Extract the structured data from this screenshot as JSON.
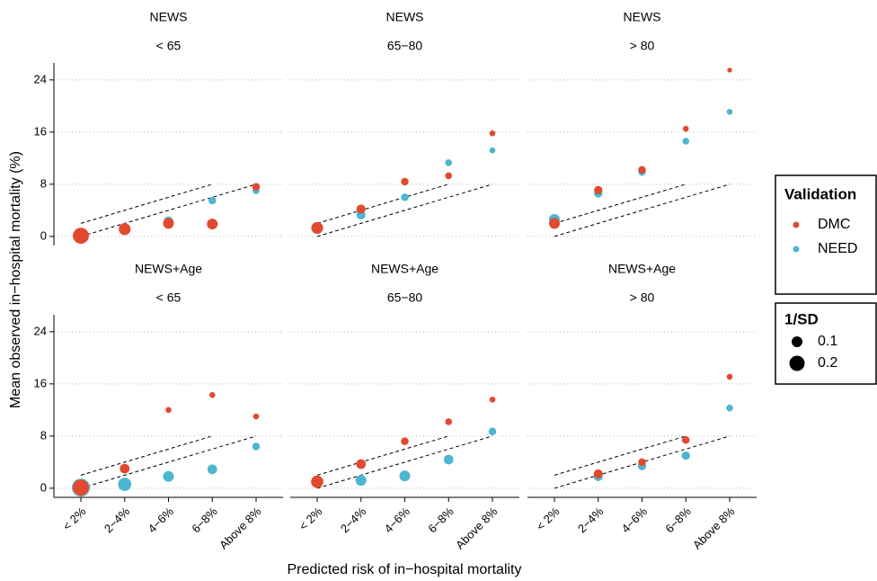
{
  "chart_data": {
    "type": "scatter",
    "xlabel": "Predicted risk of in−hospital mortality",
    "ylabel": "Mean observed in−hospital mortality (%)",
    "categories": [
      "< 2%",
      "2−4%",
      "4−6%",
      "6−8%",
      "Above 8%"
    ],
    "ylim": [
      -1.4,
      26.6
    ],
    "yticks": [
      0,
      8,
      16,
      24
    ],
    "grid": true,
    "legend_title": "Validation",
    "series": [
      {
        "name": "DMC",
        "color": "#e2492f"
      },
      {
        "name": "NEED",
        "color": "#4db6d0"
      }
    ],
    "size_legend": {
      "title": "1/SD",
      "values": [
        0.1,
        0.2
      ]
    },
    "reference_lines": [
      [
        0,
        2,
        4,
        6,
        8
      ],
      [
        2,
        4,
        6,
        8,
        null
      ]
    ],
    "panels": [
      {
        "title": "NEWS",
        "subtitle": "< 65",
        "series": [
          {
            "values": [
              0.1,
              1.1,
              2.0,
              1.9,
              7.6
            ],
            "sizes": [
              0.22,
              0.12,
              0.1,
              0.1,
              0.05
            ]
          },
          {
            "values": [
              0.1,
              1.2,
              2.3,
              5.5,
              7.0
            ],
            "sizes": [
              0.2,
              0.1,
              0.08,
              0.05,
              0.04
            ]
          }
        ]
      },
      {
        "title": "NEWS",
        "subtitle": "65−80",
        "series": [
          {
            "values": [
              1.3,
              4.2,
              8.4,
              9.3,
              15.8
            ],
            "sizes": [
              0.12,
              0.07,
              0.05,
              0.04,
              0.03
            ]
          },
          {
            "values": [
              1.3,
              3.3,
              6.0,
              11.3,
              13.2
            ],
            "sizes": [
              0.1,
              0.07,
              0.05,
              0.04,
              0.03
            ]
          }
        ]
      },
      {
        "title": "NEWS",
        "subtitle": "> 80",
        "series": [
          {
            "values": [
              2.0,
              7.1,
              10.2,
              16.5,
              25.5
            ],
            "sizes": [
              0.1,
              0.06,
              0.05,
              0.03,
              0.02
            ]
          },
          {
            "values": [
              2.6,
              6.6,
              9.9,
              14.6,
              19.1
            ],
            "sizes": [
              0.1,
              0.06,
              0.05,
              0.04,
              0.03
            ]
          }
        ]
      },
      {
        "title": "NEWS+Age",
        "subtitle": "< 65",
        "series": [
          {
            "values": [
              0.1,
              3.0,
              12.0,
              14.3,
              11.0
            ],
            "sizes": [
              0.22,
              0.08,
              0.03,
              0.03,
              0.03
            ]
          },
          {
            "values": [
              0.1,
              0.6,
              1.8,
              2.9,
              6.4
            ],
            "sizes": [
              0.28,
              0.15,
              0.1,
              0.08,
              0.05
            ]
          }
        ]
      },
      {
        "title": "NEWS+Age",
        "subtitle": "65−80",
        "series": [
          {
            "values": [
              1.0,
              3.7,
              7.2,
              10.2,
              13.6
            ],
            "sizes": [
              0.13,
              0.08,
              0.05,
              0.04,
              0.03
            ]
          },
          {
            "values": [
              1.0,
              1.2,
              1.9,
              4.4,
              8.7
            ],
            "sizes": [
              0.12,
              0.1,
              0.1,
              0.08,
              0.05
            ]
          }
        ]
      },
      {
        "title": "NEWS+Age",
        "subtitle": "> 80",
        "series": [
          {
            "values": [
              null,
              2.2,
              4.0,
              7.4,
              17.1
            ],
            "sizes": [
              null,
              0.07,
              0.05,
              0.05,
              0.03
            ]
          },
          {
            "values": [
              null,
              1.8,
              3.4,
              5.0,
              12.3
            ],
            "sizes": [
              null,
              0.07,
              0.06,
              0.06,
              0.04
            ]
          }
        ]
      }
    ]
  }
}
